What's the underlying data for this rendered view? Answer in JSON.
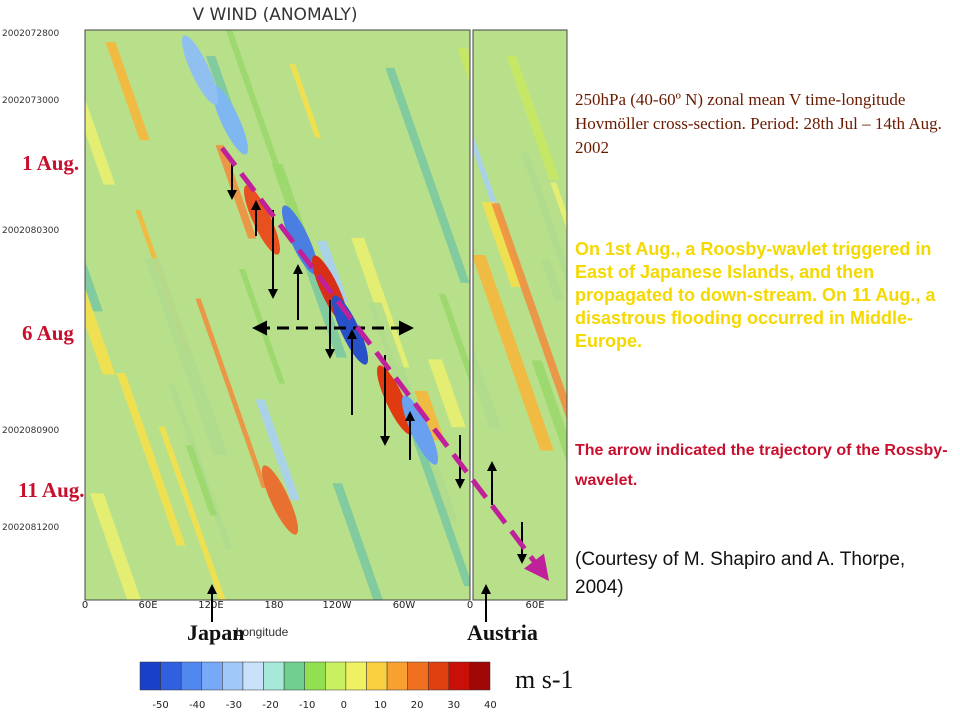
{
  "figure": {
    "title": "V WIND (ANOMALY)",
    "date_labels": [
      "2002072800",
      "2002073000",
      "2002080300",
      "2002080900",
      "2002081200"
    ],
    "day_labels": [
      "1 Aug.",
      "6 Aug",
      "11 Aug."
    ],
    "x_labels": [
      "0",
      "60E",
      "120E",
      "180",
      "120W",
      "60W",
      "0",
      "60E"
    ],
    "x_axis_label": "Longitude",
    "places": [
      "Japan",
      "Austria"
    ],
    "colorbar_labels": [
      "-50",
      "-40",
      "-30",
      "-20",
      "-10",
      "0",
      "10",
      "20",
      "30",
      "40"
    ],
    "unit": "m s-1"
  },
  "text": {
    "description": "250hPa (40-60º N) zonal mean V time-longitude Hovmöller cross-section. Period: 28th Jul – 14th Aug. 2002",
    "event": "On 1st Aug., a Roosby-wavlet triggered in East of Japanese Islands,  and then propagated to down-stream. On 11 Aug., a disastrous  flooding occurred in Middle-Europe.",
    "note": "The arrow indicated the trajectory of the Rossby-wavelet.",
    "credit": "(Courtesy of M. Shapiro and A. Thorpe, 2004)"
  }
}
